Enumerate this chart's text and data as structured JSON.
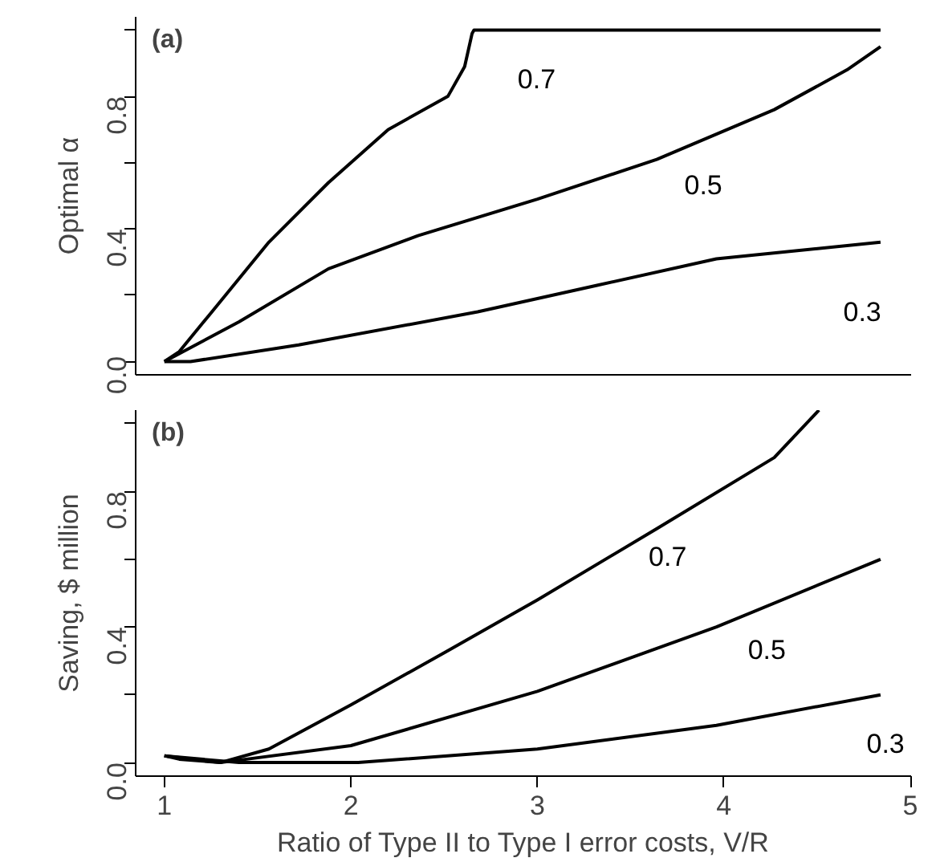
{
  "chart_data": [
    {
      "type": "line",
      "title": "(a)",
      "ylabel": "Optimal α",
      "xlim": [
        0.846,
        5.004
      ],
      "ylim": [
        -0.04,
        1.04
      ],
      "yticks": [
        {
          "value": 0,
          "label": "0.0"
        },
        {
          "value": 0.2,
          "label": null
        },
        {
          "value": 0.4,
          "label": "0.4"
        },
        {
          "value": 0.6,
          "label": null
        },
        {
          "value": 0.8,
          "label": "0.8"
        },
        {
          "value": 1.0,
          "label": null
        }
      ],
      "tick_labels": "y",
      "grid": false,
      "series": [
        {
          "name": "0.7",
          "color": "#000000",
          "x": [
            1.0,
            1.08,
            1.24,
            1.56,
            1.88,
            2.2,
            2.52,
            2.61,
            2.65,
            2.66,
            3.0,
            4.0,
            4.84
          ],
          "values": [
            0.0,
            0.03,
            0.14,
            0.36,
            0.54,
            0.7,
            0.8,
            0.89,
            0.99,
            1.0,
            1.0,
            1.0,
            1.0
          ]
        },
        {
          "name": "0.5",
          "color": "#000000",
          "x": [
            1.0,
            1.4,
            1.88,
            2.36,
            3.0,
            3.64,
            4.27,
            4.66,
            4.84
          ],
          "values": [
            0.0,
            0.12,
            0.28,
            0.38,
            0.49,
            0.61,
            0.76,
            0.88,
            0.95
          ]
        },
        {
          "name": "0.3",
          "color": "#000000",
          "x": [
            1.0,
            1.14,
            1.72,
            2.68,
            3.32,
            3.96,
            4.84
          ],
          "values": [
            0.0,
            0.0,
            0.05,
            0.15,
            0.23,
            0.31,
            0.36
          ]
        }
      ]
    },
    {
      "type": "line",
      "title": "(b)",
      "ylabel": "Saving, $ million",
      "xlabel": "Ratio of Type II to Type I error costs, V/R",
      "xlim": [
        0.846,
        5.004
      ],
      "ylim": [
        -0.04,
        1.04
      ],
      "xticks": [
        1,
        2,
        3,
        4,
        5
      ],
      "yticks": [
        {
          "value": 0,
          "label": "0.0"
        },
        {
          "value": 0.2,
          "label": null
        },
        {
          "value": 0.4,
          "label": "0.4"
        },
        {
          "value": 0.6,
          "label": null
        },
        {
          "value": 0.8,
          "label": "0.8"
        },
        {
          "value": 1.0,
          "label": null
        }
      ],
      "grid": false,
      "series": [
        {
          "name": "0.7",
          "color": "#000000",
          "x": [
            1.0,
            1.08,
            1.3,
            1.56,
            2.0,
            2.52,
            3.0,
            3.64,
            4.27,
            4.51
          ],
          "values": [
            0.02,
            0.01,
            0.0,
            0.04,
            0.17,
            0.33,
            0.48,
            0.69,
            0.9,
            1.04
          ]
        },
        {
          "name": "0.5",
          "color": "#000000",
          "x": [
            1.0,
            1.3,
            2.0,
            3.0,
            3.96,
            4.84
          ],
          "values": [
            0.02,
            0.0,
            0.05,
            0.21,
            0.4,
            0.6
          ]
        },
        {
          "name": "0.3",
          "color": "#000000",
          "x": [
            1.0,
            1.4,
            2.04,
            3.0,
            3.96,
            4.84
          ],
          "values": [
            0.02,
            0.0,
            0.0,
            0.04,
            0.11,
            0.2
          ]
        }
      ]
    }
  ]
}
